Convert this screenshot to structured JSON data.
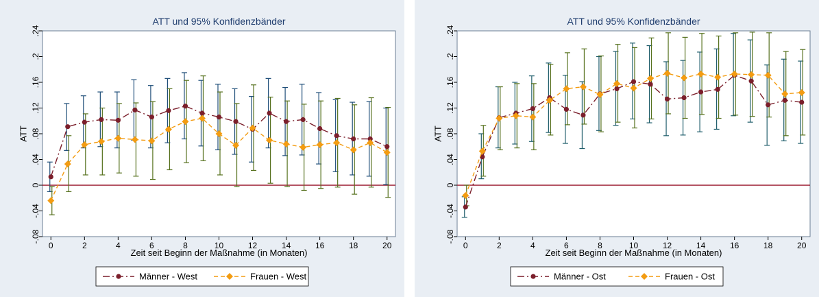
{
  "chart_data": [
    {
      "type": "line",
      "title": "ATT und 95% Konfidenzbänder",
      "xlabel": "Zeit seit Beginn der Maßnahme (in Monaten)",
      "ylabel": "ATT",
      "xlim": [
        -0.5,
        20.5
      ],
      "ylim": [
        -0.08,
        0.24
      ],
      "x_ticks": [
        0,
        2,
        4,
        6,
        8,
        10,
        12,
        14,
        16,
        18,
        20
      ],
      "y_ticks": [
        -0.08,
        -0.04,
        0,
        0.04,
        0.08,
        0.12,
        0.16,
        0.2,
        0.24
      ],
      "y_tick_labels": [
        "-.08",
        "-.04",
        "0",
        ".04",
        ".08",
        ".12",
        ".16",
        ".2",
        ".24"
      ],
      "reference_line": 0,
      "grid": false,
      "legend_position": "bottom",
      "x": [
        0,
        1,
        2,
        3,
        4,
        5,
        6,
        7,
        8,
        9,
        10,
        11,
        12,
        13,
        14,
        15,
        16,
        17,
        18,
        19,
        20
      ],
      "series": [
        {
          "name": "Männer - West",
          "color": "#7b1f2b",
          "marker": "circle",
          "line": "longdash",
          "values": [
            0.013,
            0.091,
            0.098,
            0.102,
            0.101,
            0.117,
            0.106,
            0.116,
            0.123,
            0.112,
            0.106,
            0.099,
            0.087,
            0.112,
            0.099,
            0.102,
            0.088,
            0.077,
            0.072,
            0.072,
            0.06
          ],
          "ci_low": [
            -0.01,
            0.054,
            0.058,
            0.06,
            0.058,
            0.07,
            0.058,
            0.066,
            0.072,
            0.061,
            0.055,
            0.048,
            0.036,
            0.058,
            0.046,
            0.047,
            0.033,
            0.021,
            0.016,
            0.014,
            0.001
          ],
          "ci_high": [
            0.036,
            0.127,
            0.139,
            0.145,
            0.145,
            0.164,
            0.155,
            0.166,
            0.175,
            0.163,
            0.157,
            0.15,
            0.138,
            0.166,
            0.152,
            0.157,
            0.144,
            0.133,
            0.129,
            0.13,
            0.12
          ]
        },
        {
          "name": "Frauen - West",
          "color": "#f39c12",
          "ci_color": "#55701c",
          "marker": "diamond",
          "line": "dash",
          "values": [
            -0.024,
            0.033,
            0.063,
            0.068,
            0.073,
            0.071,
            0.069,
            0.087,
            0.099,
            0.104,
            0.08,
            0.062,
            0.089,
            0.07,
            0.064,
            0.059,
            0.063,
            0.066,
            0.055,
            0.066,
            0.051
          ],
          "ci_low": [
            -0.046,
            -0.01,
            0.016,
            0.016,
            0.019,
            0.014,
            0.009,
            0.024,
            0.035,
            0.038,
            0.016,
            -0.002,
            0.023,
            0.003,
            -0.002,
            -0.008,
            -0.005,
            -0.003,
            -0.014,
            -0.003,
            -0.019
          ],
          "ci_high": [
            -0.002,
            0.077,
            0.111,
            0.12,
            0.127,
            0.128,
            0.13,
            0.15,
            0.163,
            0.17,
            0.145,
            0.127,
            0.156,
            0.137,
            0.131,
            0.126,
            0.131,
            0.135,
            0.125,
            0.136,
            0.121
          ]
        }
      ]
    },
    {
      "type": "line",
      "title": "ATT und 95% Konfidenzbänder",
      "xlabel": "Zeit seit Beginn der Maßnahme (in Monaten)",
      "ylabel": "ATT",
      "xlim": [
        -0.5,
        20.5
      ],
      "ylim": [
        -0.08,
        0.24
      ],
      "x_ticks": [
        0,
        2,
        4,
        6,
        8,
        10,
        12,
        14,
        16,
        18,
        20
      ],
      "y_ticks": [
        -0.08,
        -0.04,
        0,
        0.04,
        0.08,
        0.12,
        0.16,
        0.2,
        0.24
      ],
      "y_tick_labels": [
        "-.08",
        "-.04",
        "0",
        ".04",
        ".08",
        ".12",
        ".16",
        ".2",
        ".24"
      ],
      "reference_line": 0,
      "grid": false,
      "legend_position": "bottom",
      "x": [
        0,
        1,
        2,
        3,
        4,
        5,
        6,
        7,
        8,
        9,
        10,
        11,
        12,
        13,
        14,
        15,
        16,
        17,
        18,
        19,
        20
      ],
      "series": [
        {
          "name": "Männer - Ost",
          "color": "#7b1f2b",
          "ci_color": "#1f5d6b",
          "marker": "circle",
          "line": "longdash",
          "values": [
            -0.034,
            0.044,
            0.105,
            0.112,
            0.119,
            0.136,
            0.118,
            0.109,
            0.142,
            0.15,
            0.161,
            0.157,
            0.134,
            0.136,
            0.145,
            0.149,
            0.171,
            0.162,
            0.125,
            0.132,
            0.129
          ],
          "ci_low": [
            -0.05,
            0.01,
            0.058,
            0.064,
            0.068,
            0.082,
            0.065,
            0.057,
            0.085,
            0.093,
            0.103,
            0.097,
            0.077,
            0.078,
            0.083,
            0.087,
            0.108,
            0.098,
            0.062,
            0.069,
            0.065
          ],
          "ci_high": [
            -0.018,
            0.08,
            0.153,
            0.16,
            0.17,
            0.19,
            0.171,
            0.161,
            0.2,
            0.208,
            0.221,
            0.217,
            0.192,
            0.194,
            0.207,
            0.212,
            0.236,
            0.226,
            0.187,
            0.196,
            0.193
          ]
        },
        {
          "name": "Frauen - Ost",
          "color": "#f39c12",
          "ci_color": "#55701c",
          "marker": "diamond",
          "line": "dash",
          "values": [
            -0.016,
            0.053,
            0.104,
            0.108,
            0.106,
            0.132,
            0.15,
            0.153,
            0.141,
            0.158,
            0.151,
            0.166,
            0.174,
            0.167,
            0.173,
            0.168,
            0.173,
            0.172,
            0.171,
            0.142,
            0.144
          ],
          "ci_low": [
            -0.032,
            0.014,
            0.055,
            0.058,
            0.055,
            0.078,
            0.094,
            0.095,
            0.083,
            0.098,
            0.089,
            0.103,
            0.111,
            0.104,
            0.11,
            0.104,
            0.109,
            0.107,
            0.106,
            0.077,
            0.078
          ],
          "ci_high": [
            0.0,
            0.093,
            0.153,
            0.158,
            0.158,
            0.188,
            0.206,
            0.212,
            0.201,
            0.219,
            0.214,
            0.229,
            0.237,
            0.23,
            0.236,
            0.232,
            0.237,
            0.238,
            0.237,
            0.208,
            0.211
          ]
        }
      ]
    }
  ]
}
